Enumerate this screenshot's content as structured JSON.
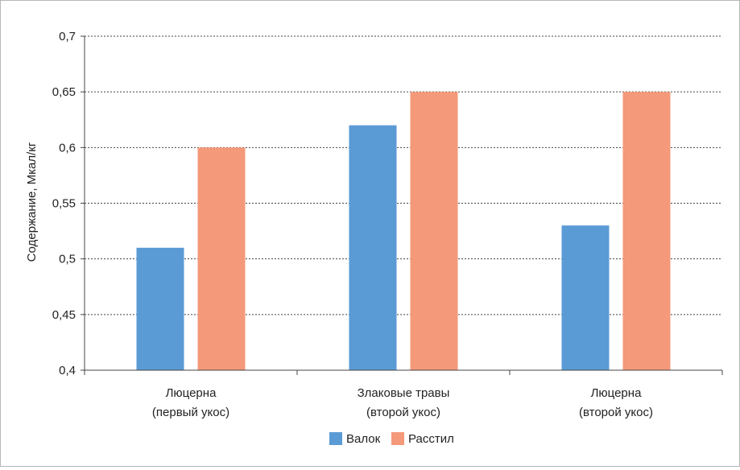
{
  "chart_data": {
    "type": "bar",
    "categories": [
      [
        "Люцерна",
        "(первый укос)"
      ],
      [
        "Злаковые травы",
        "(второй укос)"
      ],
      [
        "Люцерна",
        "(второй укос)"
      ]
    ],
    "series": [
      {
        "name": "Валок",
        "values": [
          0.51,
          0.62,
          0.53
        ],
        "color": "#5b9bd5"
      },
      {
        "name": "Расстил",
        "values": [
          0.6,
          0.65,
          0.65
        ],
        "color": "#f4997a"
      }
    ],
    "ylabel": "Содержание, Мкал/кг",
    "ylim": [
      0.4,
      0.7
    ],
    "yticks": [
      "0,4",
      "0,45",
      "0,5",
      "0,55",
      "0,6",
      "0,65",
      "0,7"
    ],
    "grid": true,
    "legend_position": "bottom"
  }
}
